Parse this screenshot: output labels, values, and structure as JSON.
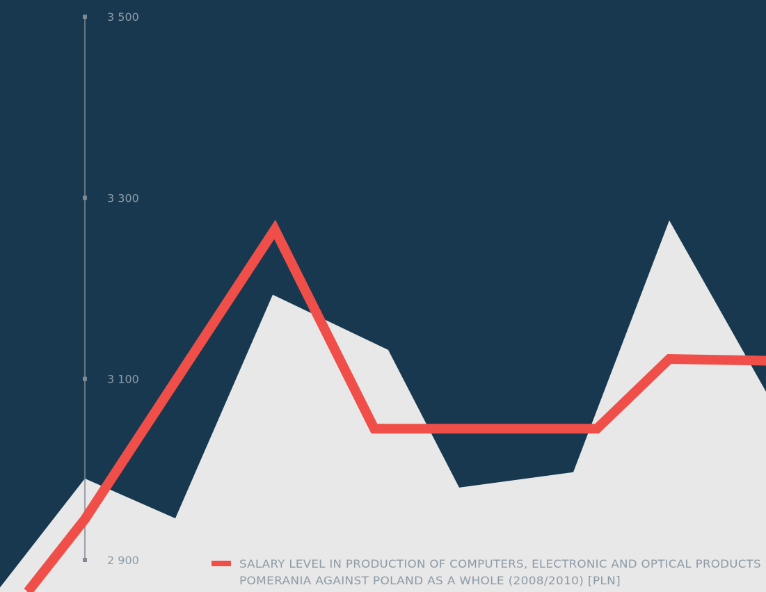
{
  "colors": {
    "background": "#17384f",
    "area_fill": "#e8e8e8",
    "line": "#ef4f48",
    "axis": "#7f8b92",
    "tick_label": "#8c9ba6"
  },
  "chart_data": {
    "type": "line",
    "title": "",
    "xlabel": "",
    "ylabel": "",
    "ylim": [
      2900,
      3500
    ],
    "y_ticks": [
      {
        "value": 3500,
        "label": "3 500"
      },
      {
        "value": 3300,
        "label": "3 300"
      },
      {
        "value": 3100,
        "label": "3 100"
      },
      {
        "value": 2900,
        "label": "2 900"
      }
    ],
    "grid": false,
    "legend": {
      "placement": "bottom-right",
      "lines": [
        "SALARY LEVEL IN PRODUCTION OF COMPUTERS, ELECTRONIC AND OPTICAL PRODUCTS",
        "POMERANIA AGAINST POLAND AS A WHOLE (2008/2010) [PLN]"
      ]
    },
    "series": [
      {
        "kind": "area",
        "values": [
          2850,
          2990,
          2946,
          3193,
          3132,
          2980,
          2997,
          3275,
          3060
        ]
      },
      {
        "kind": "line",
        "values": [
          2865,
          2945,
          3265,
          3045,
          3045,
          3045,
          3045,
          3122,
          3120
        ]
      }
    ]
  }
}
